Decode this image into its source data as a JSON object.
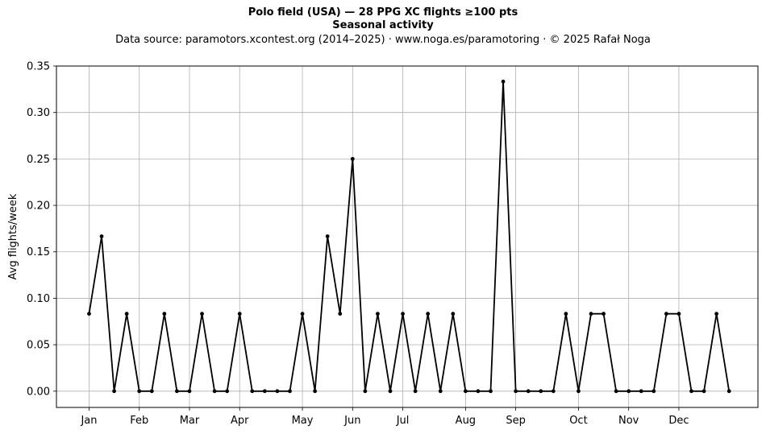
{
  "header": {
    "title_line1": "Polo field (USA)  —  28 PPG XC flights ≥100 pts",
    "title_line2": "Seasonal activity",
    "subtitle": "Data source: paramotors.xcontest.org (2014–2025)  ·  www.noga.es/paramotoring  ·  © 2025 Rafał Noga"
  },
  "chart_data": {
    "type": "line",
    "title": "Polo field (USA)  —  28 PPG XC flights ≥100 pts\nSeasonal activity",
    "subtitle": "Data source: paramotors.xcontest.org (2014–2025)  ·  www.noga.es/paramotoring  ·  © 2025 Rafał Noga",
    "xlabel": "",
    "ylabel": "Avg flights/week",
    "x": [
      1,
      2,
      3,
      4,
      5,
      6,
      7,
      8,
      9,
      10,
      11,
      12,
      13,
      14,
      15,
      16,
      17,
      18,
      19,
      20,
      21,
      22,
      23,
      24,
      25,
      26,
      27,
      28,
      29,
      30,
      31,
      32,
      33,
      34,
      35,
      36,
      37,
      38,
      39,
      40,
      41,
      42,
      43,
      44,
      45,
      46,
      47,
      48,
      49,
      50,
      51,
      52
    ],
    "series": [
      {
        "values": [
          0.0833,
          0.1667,
          0,
          0.0833,
          0,
          0,
          0.0833,
          0,
          0,
          0.0833,
          0,
          0,
          0.0833,
          0,
          0,
          0,
          0,
          0.0833,
          0,
          0.1667,
          0.0833,
          0.25,
          0,
          0.0833,
          0,
          0.0833,
          0,
          0.0833,
          0,
          0.0833,
          0,
          0,
          0,
          0.3333,
          0,
          0,
          0,
          0,
          0.0833,
          0,
          0.0833,
          0.0833,
          0,
          0,
          0,
          0,
          0.0833,
          0.0833,
          0,
          0,
          0.0833,
          0
        ],
        "color": "#000000"
      }
    ],
    "xlim": [
      -1.6,
      54.3
    ],
    "ylim": [
      -0.0175,
      0.35
    ],
    "x_ticks": [
      {
        "label": "Jan",
        "pos": 1
      },
      {
        "label": "Feb",
        "pos": 5
      },
      {
        "label": "Mar",
        "pos": 9
      },
      {
        "label": "Apr",
        "pos": 13
      },
      {
        "label": "May",
        "pos": 18
      },
      {
        "label": "Jun",
        "pos": 22
      },
      {
        "label": "Jul",
        "pos": 26
      },
      {
        "label": "Aug",
        "pos": 31
      },
      {
        "label": "Sep",
        "pos": 35
      },
      {
        "label": "Oct",
        "pos": 40
      },
      {
        "label": "Nov",
        "pos": 44
      },
      {
        "label": "Dec",
        "pos": 48
      }
    ],
    "y_ticks": [
      {
        "label": "0.00",
        "value": 0
      },
      {
        "label": "0.05",
        "value": 0.05
      },
      {
        "label": "0.10",
        "value": 0.1
      },
      {
        "label": "0.15",
        "value": 0.15
      },
      {
        "label": "0.20",
        "value": 0.2
      },
      {
        "label": "0.25",
        "value": 0.25
      },
      {
        "label": "0.30",
        "value": 0.3
      },
      {
        "label": "0.35",
        "value": 0.35
      }
    ],
    "grid": true,
    "colors": {
      "grid": "#b0b0b0",
      "line": "#000000"
    }
  }
}
